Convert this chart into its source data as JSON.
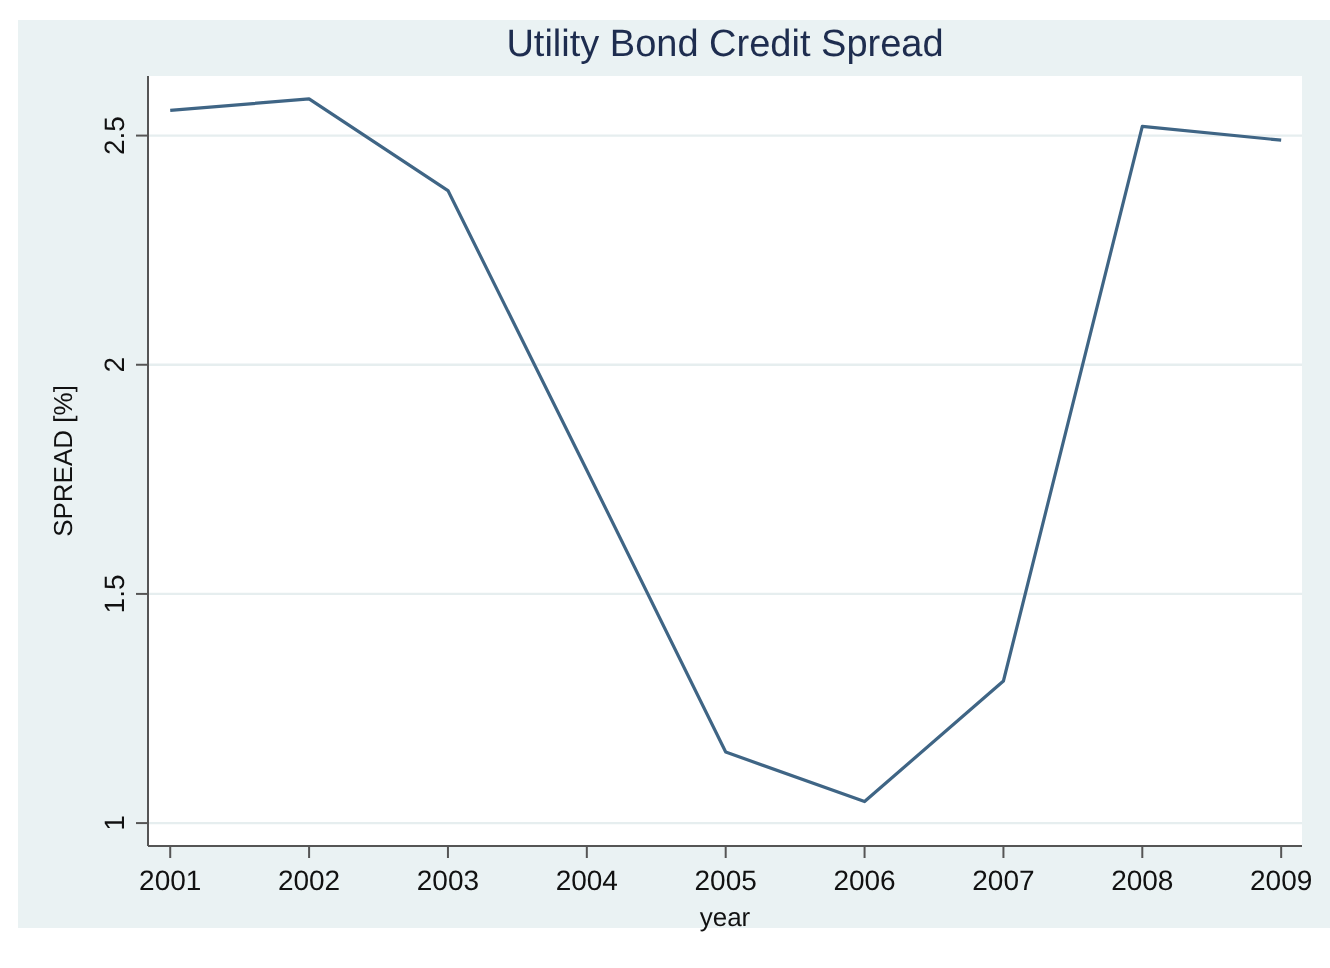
{
  "chart_data": {
    "type": "line",
    "title": "Utility Bond Credit Spread",
    "xlabel": "year",
    "ylabel": "SPREAD [%]",
    "x": [
      2001,
      2002,
      2003,
      2004,
      2005,
      2006,
      2007,
      2008,
      2009
    ],
    "series": [
      {
        "color": "#3f6585",
        "values": [
          2.555,
          2.58,
          2.38,
          1.77,
          1.155,
          1.047,
          1.31,
          2.52,
          2.49
        ]
      }
    ],
    "xlim": [
      2000.84,
      2009.15
    ],
    "xticks": [
      2001,
      2002,
      2003,
      2004,
      2005,
      2006,
      2007,
      2008,
      2009
    ],
    "ylim": [
      0.95,
      2.63
    ],
    "yticks": [
      1,
      1.5,
      2,
      2.5
    ],
    "grid": "y",
    "marker": "none",
    "line_style": "solid"
  }
}
